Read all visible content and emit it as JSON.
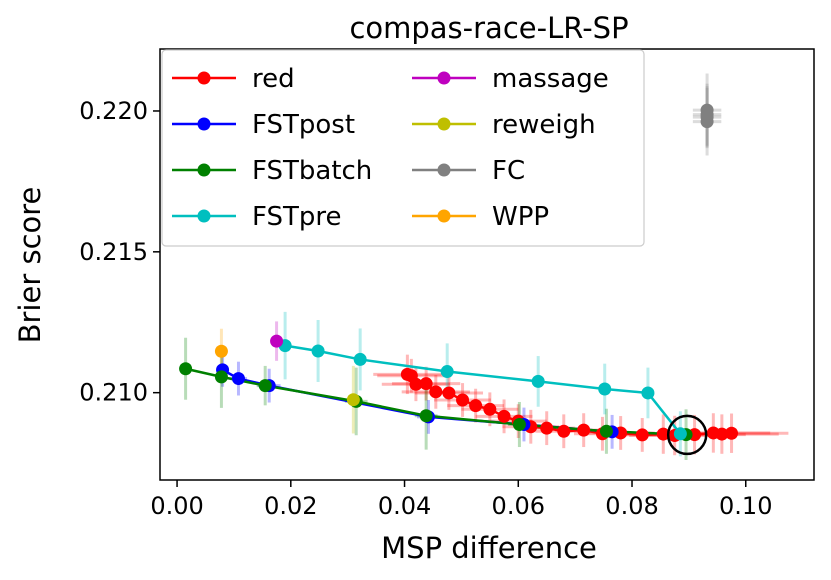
{
  "chart_data": {
    "type": "scatter",
    "title": "compas-race-LR-SP",
    "xlabel": "MSP difference",
    "ylabel": "Brier score",
    "xlim": [
      -0.003,
      0.112
    ],
    "ylim": [
      0.2069,
      0.2222
    ],
    "xticks": [
      0.0,
      0.02,
      0.04,
      0.06,
      0.08,
      0.1
    ],
    "xtick_labels": [
      "0.00",
      "0.02",
      "0.04",
      "0.06",
      "0.08",
      "0.10"
    ],
    "yticks": [
      0.21,
      0.215,
      0.22
    ],
    "ytick_labels": [
      "0.210",
      "0.215",
      "0.220"
    ],
    "grid": false,
    "legend_position": "upper-left",
    "highlight_circle": {
      "x": 0.0897,
      "y": 0.2085
    },
    "series": [
      {
        "name": "red",
        "color": "#ff0000",
        "connected": true,
        "points": [
          [
            0.0405,
            0.21065
          ],
          [
            0.0412,
            0.2106
          ],
          [
            0.042,
            0.2103
          ],
          [
            0.0438,
            0.21032
          ],
          [
            0.0455,
            0.21003
          ],
          [
            0.0478,
            0.20999
          ],
          [
            0.0502,
            0.20974
          ],
          [
            0.0525,
            0.20954
          ],
          [
            0.055,
            0.20941
          ],
          [
            0.0575,
            0.20916
          ],
          [
            0.06,
            0.20899
          ],
          [
            0.0622,
            0.20879
          ],
          [
            0.065,
            0.20874
          ],
          [
            0.068,
            0.20863
          ],
          [
            0.0715,
            0.20867
          ],
          [
            0.0748,
            0.20854
          ],
          [
            0.078,
            0.20857
          ],
          [
            0.0818,
            0.2085
          ],
          [
            0.0855,
            0.20853
          ],
          [
            0.0875,
            0.20848
          ],
          [
            0.091,
            0.20851
          ],
          [
            0.0943,
            0.20857
          ],
          [
            0.0958,
            0.20853
          ],
          [
            0.0975,
            0.20856
          ]
        ],
        "xerr": [
          0.006,
          0.006,
          0.006,
          0.006,
          0.006,
          0.006,
          0.005,
          0.005,
          0.005,
          0.005,
          0.005,
          0.005,
          0.005,
          0.005,
          0.005,
          0.005,
          0.006,
          0.006,
          0.007,
          0.008,
          0.009,
          0.01,
          0.01,
          0.01
        ],
        "yerr": [
          0.0007,
          0.0006,
          0.0006,
          0.0006,
          0.0006,
          0.0006,
          0.0006,
          0.0006,
          0.0006,
          0.0006,
          0.0006,
          0.0006,
          0.0006,
          0.0006,
          0.0006,
          0.0006,
          0.0006,
          0.0006,
          0.0007,
          0.0007,
          0.0007,
          0.0007,
          0.0007,
          0.0007
        ]
      },
      {
        "name": "FSTpost",
        "color": "#0000ff",
        "connected": true,
        "points": [
          [
            0.008,
            0.21081
          ],
          [
            0.0108,
            0.2105
          ],
          [
            0.0162,
            0.21025
          ],
          [
            0.0442,
            0.20914
          ],
          [
            0.061,
            0.20887
          ],
          [
            0.0765,
            0.20861
          ]
        ],
        "xerr": [
          0.001,
          0.0015,
          0.002,
          0.002,
          0.002,
          0.002
        ],
        "yerr": [
          0.0006,
          0.0006,
          0.0006,
          0.0006,
          0.0006,
          0.0006
        ]
      },
      {
        "name": "FSTbatch",
        "color": "#008000",
        "connected": true,
        "points": [
          [
            0.0015,
            0.21085
          ],
          [
            0.0078,
            0.21056
          ],
          [
            0.0155,
            0.21025
          ],
          [
            0.0315,
            0.20969
          ],
          [
            0.0438,
            0.20918
          ],
          [
            0.0602,
            0.20887
          ],
          [
            0.0755,
            0.20863
          ],
          [
            0.0895,
            0.20851
          ]
        ],
        "xerr": [
          0.0008,
          0.001,
          0.0015,
          0.002,
          0.002,
          0.002,
          0.002,
          0.002
        ],
        "yerr": [
          0.0011,
          0.0011,
          0.0007,
          0.0012,
          0.0012,
          0.0008,
          0.0008,
          0.0009
        ]
      },
      {
        "name": "FSTpre",
        "color": "#00bfbf",
        "connected": true,
        "points": [
          [
            0.019,
            0.21167
          ],
          [
            0.0248,
            0.21148
          ],
          [
            0.0322,
            0.21118
          ],
          [
            0.0475,
            0.21075
          ],
          [
            0.0635,
            0.2104
          ],
          [
            0.0752,
            0.21013
          ],
          [
            0.0828,
            0.20999
          ],
          [
            0.0885,
            0.20854
          ]
        ],
        "xerr": [
          0.001,
          0.001,
          0.001,
          0.001,
          0.001,
          0.001,
          0.001,
          0.001
        ],
        "yerr": [
          0.0012,
          0.0011,
          0.0011,
          0.001,
          0.0009,
          0.0009,
          0.0009,
          0.0008
        ]
      },
      {
        "name": "massage",
        "color": "#bf00bf",
        "connected": false,
        "points": [
          [
            0.0175,
            0.21183
          ]
        ],
        "xerr": [
          0.0006
        ],
        "yerr": [
          0.0007
        ]
      },
      {
        "name": "reweigh",
        "color": "#bfbf00",
        "connected": false,
        "points": [
          [
            0.031,
            0.20975
          ]
        ],
        "xerr": [
          0.0012
        ],
        "yerr": [
          0.0012
        ]
      },
      {
        "name": "FC",
        "color": "#808080",
        "connected": false,
        "points": [
          [
            0.0932,
            0.22003
          ],
          [
            0.0932,
            0.21987
          ],
          [
            0.0932,
            0.21978
          ],
          [
            0.0932,
            0.21962
          ]
        ],
        "xerr": [
          0.0025,
          0.0025,
          0.0025,
          0.0025
        ],
        "yerr": [
          0.0013,
          0.0011,
          0.0011,
          0.0012
        ]
      },
      {
        "name": "WPP",
        "color": "#ffa500",
        "connected": false,
        "points": [
          [
            0.0078,
            0.21147
          ]
        ],
        "xerr": [
          0.0005
        ],
        "yerr": [
          0.0008
        ]
      }
    ]
  }
}
